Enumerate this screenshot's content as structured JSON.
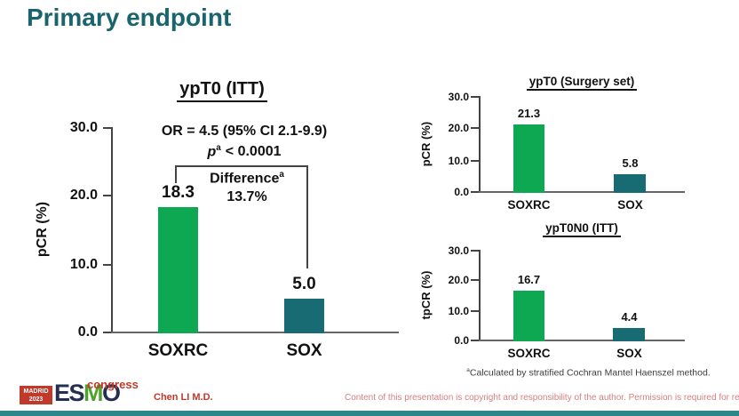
{
  "slide_title": "Primary endpoint",
  "colors": {
    "title_teal": "#1a646e",
    "bar_green": "#0ea852",
    "bar_teal": "#186b72",
    "accent_red": "#c0392b",
    "copyright_red": "#d67f7f",
    "bottom_bar_teal": "#2b8789"
  },
  "chart_data": [
    {
      "type": "bar",
      "title": "ypT0 (ITT)",
      "ylabel": "pCR (%)",
      "categories": [
        "SOXRC",
        "SOX"
      ],
      "values": [
        18.3,
        5.0
      ],
      "value_labels": [
        "18.3",
        "5.0"
      ],
      "yticks": [
        "30.0",
        "20.0",
        "10.0",
        "0.0"
      ],
      "ylim": [
        0,
        30
      ],
      "grid": false,
      "legend": "none",
      "annotations": {
        "or_text": "OR = 4.5 (95% CI 2.1-9.9)",
        "p_label": "p",
        "p_sup": "a",
        "p_value": "< 0.0001",
        "difference_label": "Difference",
        "difference_sup": "a",
        "difference_value": "13.7%"
      }
    },
    {
      "type": "bar",
      "title": "ypT0 (Surgery set)",
      "ylabel": "pCR (%)",
      "categories": [
        "SOXRC",
        "SOX"
      ],
      "values": [
        21.3,
        5.8
      ],
      "value_labels": [
        "21.3",
        "5.8"
      ],
      "yticks": [
        "30.0",
        "20.0",
        "10.0",
        "0.0"
      ],
      "ylim": [
        0,
        30
      ],
      "grid": false,
      "legend": "none"
    },
    {
      "type": "bar",
      "title": "ypT0N0 (ITT)",
      "ylabel": "tpCR (%)",
      "categories": [
        "SOXRC",
        "SOX"
      ],
      "values": [
        16.7,
        4.4
      ],
      "value_labels": [
        "16.7",
        "4.4"
      ],
      "yticks": [
        "30.0",
        "20.0",
        "10.0",
        "0.0"
      ],
      "ylim": [
        0,
        30
      ],
      "grid": false,
      "legend": "none"
    }
  ],
  "footnote": {
    "sup": "a",
    "text": "Calculated by stratified Cochran Mantel Haenszel method."
  },
  "logo": {
    "location": "MADRID",
    "year": "2023",
    "letters": [
      "E",
      "S",
      "M",
      "O"
    ],
    "event": "congress"
  },
  "footer": {
    "presenter": "Chen LI M.D.",
    "copyright": "Content of this presentation is copyright and responsibility of the author. Permission is required for re-use."
  }
}
